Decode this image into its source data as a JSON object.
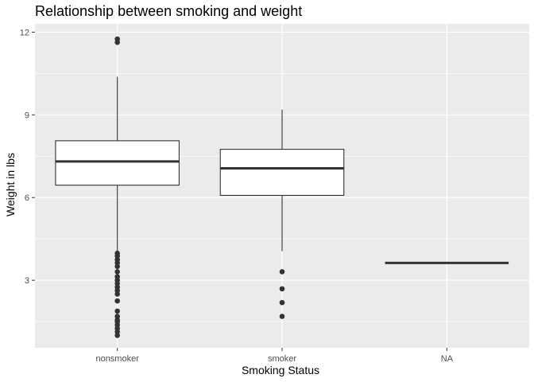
{
  "chart_data": {
    "type": "box",
    "title": "Relationship between smoking and weight",
    "xlabel": "Smoking Status",
    "ylabel": "Weight in lbs",
    "categories": [
      "nonsmoker",
      "smoker",
      "NA"
    ],
    "ylim": [
      0.55,
      12.3
    ],
    "yticks": [
      3,
      6,
      9,
      12
    ],
    "ytick_labels": [
      "3",
      "6",
      "9",
      "12"
    ],
    "grid": true,
    "legend": "none",
    "boxes": [
      {
        "category": "nonsmoker",
        "whisker_low": 4.05,
        "q1": 6.45,
        "median": 7.31,
        "q3": 8.06,
        "whisker_high": 10.38,
        "outliers": [
          11.75,
          11.63,
          3.98,
          3.88,
          3.75,
          3.63,
          3.5,
          3.31,
          3.13,
          3.0,
          2.88,
          2.75,
          2.63,
          2.5,
          2.25,
          1.88,
          1.69,
          1.56,
          1.5,
          1.38,
          1.25,
          1.13,
          1.0
        ]
      },
      {
        "category": "smoker",
        "whisker_low": 4.06,
        "q1": 6.08,
        "median": 7.06,
        "q3": 7.75,
        "whisker_high": 9.19,
        "outliers": [
          3.31,
          2.69,
          2.19,
          1.69
        ]
      },
      {
        "category": "NA",
        "whisker_low": 3.63,
        "q1": 3.63,
        "median": 3.63,
        "q3": 3.63,
        "whisker_high": 3.63,
        "outliers": []
      }
    ],
    "colors": {
      "panel": "#EBEBEB",
      "grid": "#FFFFFF",
      "box_fill": "#FFFFFF",
      "box_line": "#333333",
      "point": "#333333"
    }
  }
}
